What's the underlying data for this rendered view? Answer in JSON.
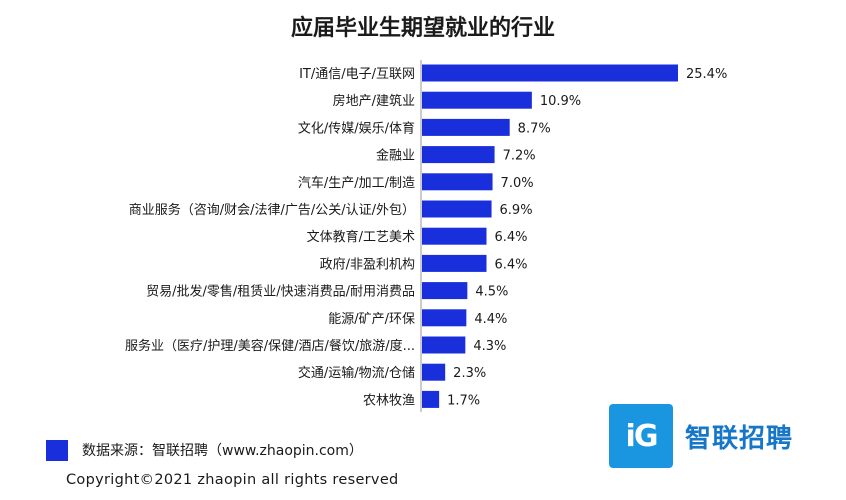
{
  "colors": {
    "bar": "#1a2fdc",
    "logo_badge": "#1a96e0",
    "logo_text": "#1677c9"
  },
  "chart_data": {
    "type": "bar",
    "orientation": "horizontal",
    "title": "应届毕业生期望就业的行业",
    "categories": [
      "IT/通信/电子/互联网",
      "房地产/建筑业",
      "文化/传媒/娱乐/体育",
      "金融业",
      "汽车/生产/加工/制造",
      "商业服务（咨询/财会/法律/广告/公关/认证/外包）",
      "文体教育/工艺美术",
      "政府/非盈利机构",
      "贸易/批发/零售/租赁业/快速消费品/耐用消费品",
      "能源/矿产/环保",
      "服务业（医疗/护理/美容/保健/酒店/餐饮/旅游/度...",
      "交通/运输/物流/仓储",
      "农林牧渔"
    ],
    "values": [
      25.4,
      10.9,
      8.7,
      7.2,
      7.0,
      6.9,
      6.4,
      6.4,
      4.5,
      4.4,
      4.3,
      2.3,
      1.7
    ],
    "value_labels": [
      "25.4%",
      "10.9%",
      "8.7%",
      "7.2%",
      "7.0%",
      "6.9%",
      "6.4%",
      "6.4%",
      "4.5%",
      "4.4%",
      "4.3%",
      "2.3%",
      "1.7%"
    ],
    "xlim": [
      0,
      25.4
    ],
    "grid": false
  },
  "source": {
    "text": "数据来源：智联招聘（www.zhaopin.com）"
  },
  "copyright": "Copyright©2021 zhaopin all rights reserved",
  "logo": {
    "badge_text": "iG",
    "brand_text": "智联招聘",
    "icon": "zhaopin-logo-icon"
  }
}
